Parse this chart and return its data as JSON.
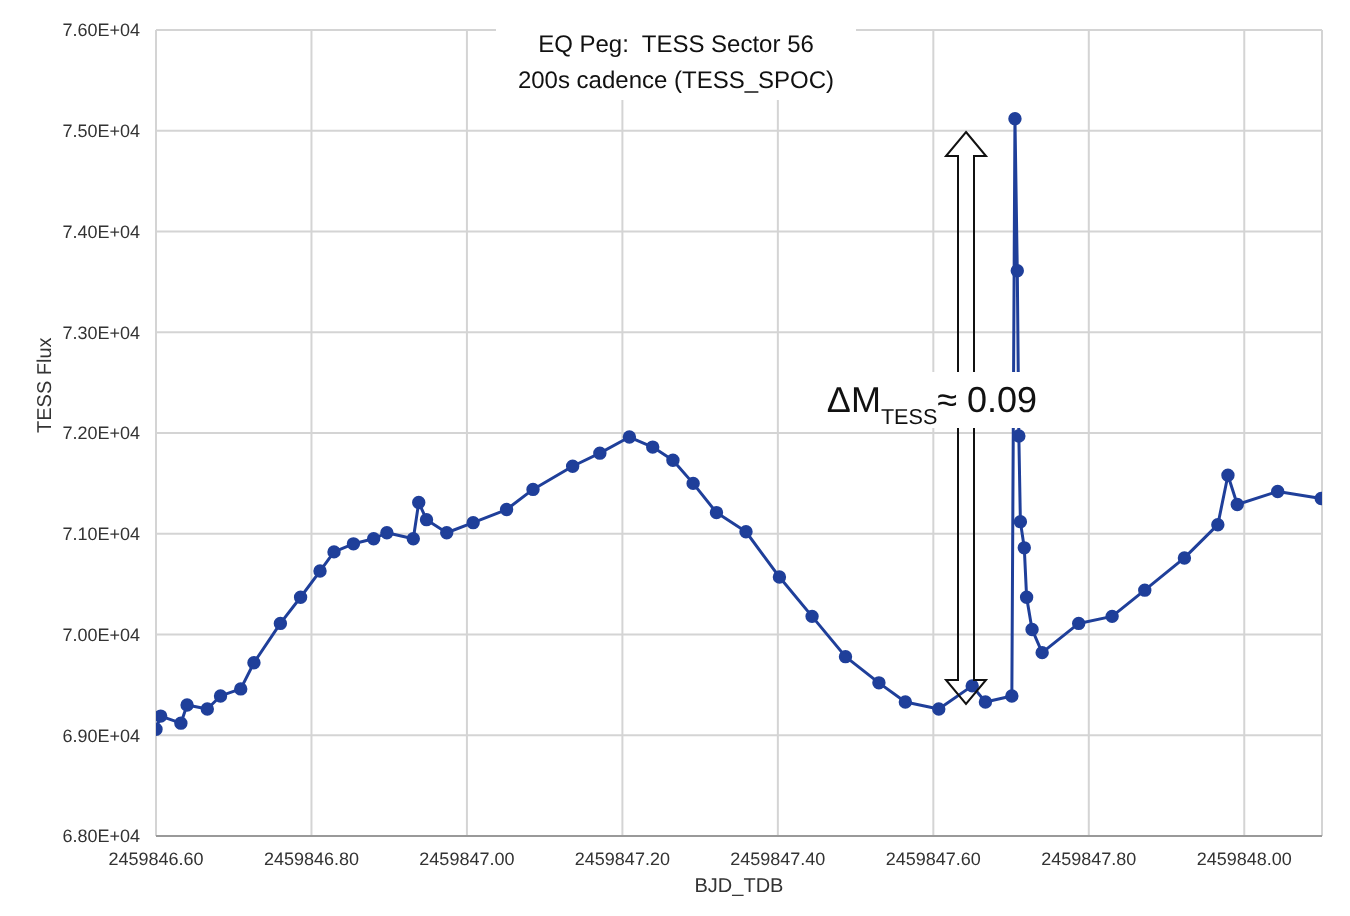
{
  "chart_data": {
    "type": "line",
    "title": "EQ Peg:  TESS Sector 56",
    "subtitle": "200s cadence (TESS_SPOC)",
    "xlabel": "BJD_TDB",
    "ylabel": "TESS Flux",
    "annotations": [
      "ΔM$_{TESS}$≈ 0.09"
    ],
    "x": [
      2459846.6,
      2459846.606,
      2459846.632,
      2459846.64,
      2459846.666,
      2459846.683,
      2459846.709,
      2459846.726,
      2459846.76,
      2459846.786,
      2459846.811,
      2459846.829,
      2459846.854,
      2459846.88,
      2459846.897,
      2459846.931,
      2459846.938,
      2459846.948,
      2459846.974,
      2459847.008,
      2459847.051,
      2459847.085,
      2459847.136,
      2459847.171,
      2459847.209,
      2459847.239,
      2459847.265,
      2459847.291,
      2459847.321,
      2459847.359,
      2459847.402,
      2459847.444,
      2459847.487,
      2459847.53,
      2459847.564,
      2459847.607,
      2459847.65,
      2459847.667,
      2459847.701,
      2459847.705,
      2459847.708,
      2459847.71,
      2459847.712,
      2459847.717,
      2459847.72,
      2459847.727,
      2459847.74,
      2459847.787,
      2459847.83,
      2459847.872,
      2459847.923,
      2459847.966,
      2459847.979,
      2459847.991,
      2459848.043,
      2459848.099
    ],
    "series": [
      {
        "color": "#1f3f9a",
        "values": [
          69060,
          69190,
          69120,
          69300,
          69260,
          69390,
          69460,
          69720,
          70110,
          70370,
          70630,
          70820,
          70900,
          70950,
          71010,
          70950,
          71310,
          71140,
          71010,
          71110,
          71240,
          71440,
          71670,
          71800,
          71960,
          71860,
          71730,
          71500,
          71210,
          71020,
          70570,
          70180,
          69780,
          69520,
          69330,
          69260,
          69490,
          69330,
          69390,
          75120,
          73610,
          71970,
          71120,
          70860,
          70370,
          70050,
          69820,
          70110,
          70180,
          70440,
          70760,
          71090,
          71580,
          71290,
          71420,
          71350
        ]
      }
    ],
    "xlim": [
      2459846.6,
      2459848.1
    ],
    "xticks": [
      {
        "value": 2459846.6,
        "label": "2459846.60"
      },
      {
        "value": 2459846.8,
        "label": "2459846.80"
      },
      {
        "value": 2459847.0,
        "label": "2459847.00"
      },
      {
        "value": 2459847.2,
        "label": "2459847.20"
      },
      {
        "value": 2459847.4,
        "label": "2459847.40"
      },
      {
        "value": 2459847.6,
        "label": "2459847.60"
      },
      {
        "value": 2459847.8,
        "label": "2459847.80"
      },
      {
        "value": 2459848.0,
        "label": "2459848.00"
      }
    ],
    "ylim": [
      68000,
      76000
    ],
    "yticks": [
      {
        "value": 68000,
        "label": "6.80E+04"
      },
      {
        "value": 69000,
        "label": "6.90E+04"
      },
      {
        "value": 70000,
        "label": "7.00E+04"
      },
      {
        "value": 71000,
        "label": "7.10E+04"
      },
      {
        "value": 72000,
        "label": "7.20E+04"
      },
      {
        "value": 73000,
        "label": "7.30E+04"
      },
      {
        "value": 74000,
        "label": "7.40E+04"
      },
      {
        "value": 75000,
        "label": "7.50E+04"
      },
      {
        "value": 76000,
        "label": "7.60E+04"
      }
    ],
    "grid": true,
    "marker": "circle",
    "line_style": "solid"
  }
}
